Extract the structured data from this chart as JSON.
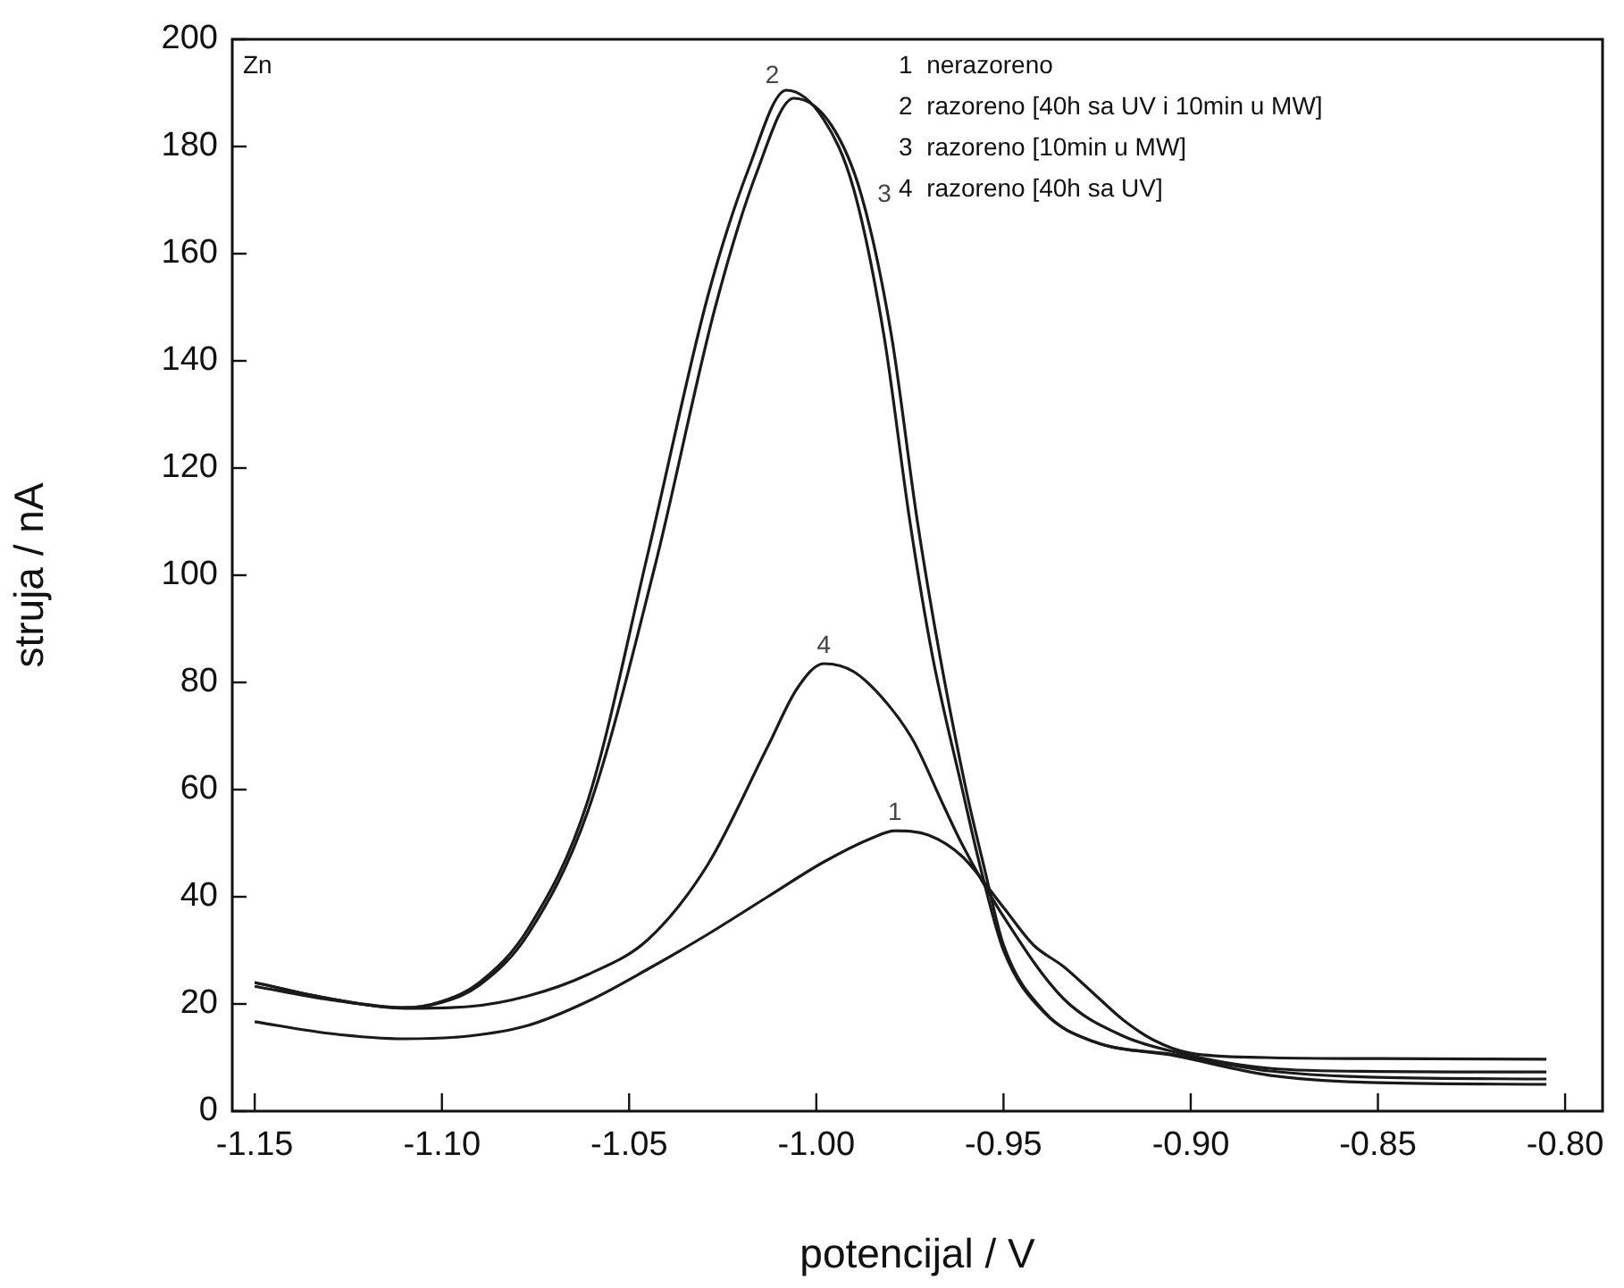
{
  "chart_data": {
    "type": "line",
    "xlabel": "potencijal / V",
    "ylabel": "struja / nA",
    "annotations": [
      "Zn",
      "1  nerazoreno",
      "2  razoreno [40h sa UV i 10min u MW]",
      "3  razoreno [10min u MW]",
      "4  razoreno [40h sa UV]",
      {
        "text": "1",
        "x": -0.979,
        "y": 52.3
      },
      {
        "text": "2",
        "x": -1.008,
        "y": 190.5
      },
      {
        "text": "3",
        "x": -0.988,
        "y": 171
      },
      {
        "text": "4",
        "x": -0.998,
        "y": 83.5
      }
    ],
    "series": [
      {
        "color": "#1a1a1a",
        "x": [
          -1.15,
          -1.13,
          -1.11,
          -1.093,
          -1.077,
          -1.061,
          -1.045,
          -1.029,
          -1.013,
          -0.998,
          -0.985,
          -0.979,
          -0.97,
          -0.961,
          -0.95,
          -0.942,
          -0.934,
          -0.926,
          -0.918,
          -0.91,
          -0.9,
          -0.88,
          -0.85,
          -0.805
        ],
        "values": [
          16.7,
          14.5,
          13.5,
          14,
          16,
          20.5,
          26.5,
          33,
          40,
          46.5,
          51,
          52.3,
          51.5,
          47.5,
          38,
          31,
          27,
          22,
          17,
          13.3,
          10.8,
          10,
          9.8,
          9.7
        ]
      },
      {
        "color": "#1a1a1a",
        "x": [
          -1.15,
          -1.13,
          -1.11,
          -1.1,
          -1.09,
          -1.077,
          -1.061,
          -1.045,
          -1.029,
          -1.018,
          -1.008,
          -0.998,
          -0.99,
          -0.982,
          -0.975,
          -0.969,
          -0.961,
          -0.956,
          -0.95,
          -0.939,
          -0.926,
          -0.904,
          -0.879,
          -0.85,
          -0.805
        ],
        "values": [
          24,
          21,
          19.3,
          20.5,
          24,
          34,
          58,
          104,
          152,
          176,
          190.5,
          185,
          172,
          145,
          110,
          85,
          60,
          45,
          30,
          18.3,
          13,
          10.3,
          6.7,
          5.3,
          5
        ]
      },
      {
        "color": "#1a1a1a",
        "x": [
          -1.15,
          -1.13,
          -1.11,
          -1.1,
          -1.09,
          -1.077,
          -1.061,
          -1.043,
          -1.027,
          -1.016,
          -1.006,
          -0.996,
          -0.988,
          -0.98,
          -0.973,
          -0.967,
          -0.96,
          -0.955,
          -0.95,
          -0.939,
          -0.926,
          -0.904,
          -0.879,
          -0.85,
          -0.805
        ],
        "values": [
          23.3,
          20.8,
          19.3,
          20.3,
          23.5,
          33,
          56,
          102,
          150,
          175,
          189,
          184,
          171,
          145,
          110,
          85,
          60,
          45,
          31,
          18.5,
          13,
          10.5,
          7.5,
          6.3,
          6
        ]
      },
      {
        "color": "#1a1a1a",
        "x": [
          -1.15,
          -1.13,
          -1.11,
          -1.093,
          -1.077,
          -1.061,
          -1.045,
          -1.029,
          -1.013,
          -1.005,
          -0.998,
          -0.99,
          -0.981,
          -0.974,
          -0.966,
          -0.961,
          -0.95,
          -0.934,
          -0.918,
          -0.904,
          -0.879,
          -0.85,
          -0.805
        ],
        "values": [
          24,
          21,
          19.2,
          19.5,
          21.5,
          25.5,
          32,
          46,
          68,
          79,
          83.5,
          82,
          76,
          69,
          57,
          49.7,
          36.3,
          21,
          14,
          11,
          8,
          7.4,
          7.3
        ]
      }
    ],
    "xlim": [
      -1.156,
      -0.79
    ],
    "xticks": [
      -1.15,
      {
        "value": -1.1,
        "label": "-1.10"
      },
      -1.05,
      {
        "value": -1,
        "label": "-1.00"
      },
      -0.95,
      {
        "value": -0.9,
        "label": "-0.90"
      },
      -0.85,
      {
        "value": -0.8,
        "label": "-0.80"
      }
    ],
    "ylim": [
      0,
      200
    ],
    "yticks": [
      0,
      20,
      40,
      60,
      80,
      100,
      120,
      140,
      160,
      180,
      200
    ],
    "grid": false,
    "legend": false,
    "marker": "none",
    "line_style": "solid"
  }
}
